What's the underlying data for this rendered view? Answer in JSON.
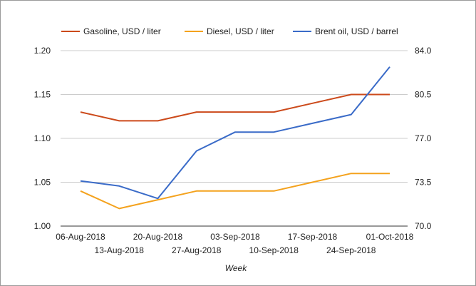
{
  "chart_data": {
    "type": "line",
    "title": "",
    "xlabel": "Week",
    "ylabel": "",
    "ylabel_right": "",
    "categories": [
      "06-Aug-2018",
      "13-Aug-2018",
      "20-Aug-2018",
      "27-Aug-2018",
      "03-Sep-2018",
      "10-Sep-2018",
      "17-Sep-2018",
      "24-Sep-2018",
      "01-Oct-2018"
    ],
    "ylim": [
      1.0,
      1.2
    ],
    "yticks": [
      "1.00",
      "1.05",
      "1.10",
      "1.15",
      "1.20"
    ],
    "ylim_right": [
      70.0,
      84.0
    ],
    "yticks_right": [
      "70.0",
      "73.5",
      "77.0",
      "80.5",
      "84.0"
    ],
    "grid": true,
    "legend_position": "top",
    "series": [
      {
        "name": "Gasoline, USD / liter",
        "color": "#cc4a1b",
        "axis": "left",
        "values": [
          1.13,
          1.12,
          1.12,
          1.13,
          1.13,
          1.13,
          1.14,
          1.15,
          1.15
        ]
      },
      {
        "name": "Diesel, USD / liter",
        "color": "#f4a21d",
        "axis": "left",
        "values": [
          1.04,
          1.02,
          1.03,
          1.04,
          1.04,
          1.04,
          1.05,
          1.06,
          1.06
        ]
      },
      {
        "name": "Brent oil, USD / barrel",
        "color": "#3a6bc8",
        "axis": "right",
        "values": [
          null,
          73.2,
          72.2,
          76.0,
          77.5,
          77.5,
          78.2,
          78.9,
          82.7
        ],
        "start_value": 73.6
      }
    ]
  }
}
